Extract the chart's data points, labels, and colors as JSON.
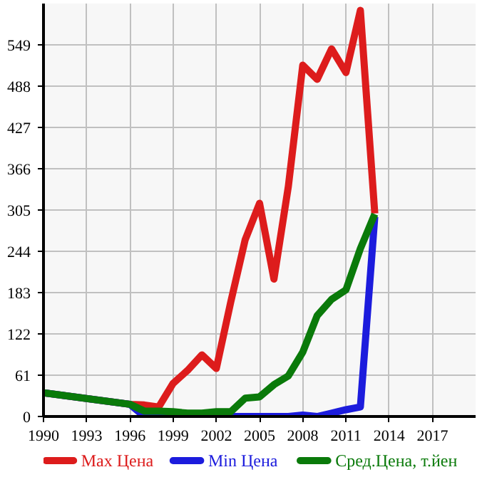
{
  "chart_data": {
    "type": "line",
    "xlim": [
      1990,
      2020
    ],
    "xticks": [
      1990,
      1993,
      1996,
      1999,
      2002,
      2005,
      2008,
      2011,
      2014,
      2017
    ],
    "ylim": [
      0,
      610
    ],
    "yticks": [
      0,
      61,
      122,
      183,
      244,
      305,
      366,
      427,
      488,
      549
    ],
    "grid": true,
    "legend": "bottom",
    "line_style": "solid",
    "marker": "none",
    "series": [
      {
        "name": "Max Цена",
        "color": "#dd1c1c",
        "x": [
          1990,
          1996,
          1997,
          1998,
          1999,
          2000,
          2001,
          2002,
          2003,
          2004,
          2005,
          2006,
          2007,
          2008,
          2009,
          2010,
          2011,
          2012,
          2013
        ],
        "values": [
          35,
          18,
          17,
          14,
          49,
          68,
          91,
          71,
          169,
          261,
          315,
          203,
          340,
          519,
          498,
          543,
          508,
          600,
          300
        ]
      },
      {
        "name": "Min Цена",
        "color": "#1c1cdd",
        "x": [
          1990,
          1996,
          1997,
          1998,
          1999,
          2000,
          2001,
          2002,
          2003,
          2004,
          2005,
          2006,
          2007,
          2008,
          2009,
          2010,
          2011,
          2012,
          2013
        ],
        "values": [
          35,
          18,
          0,
          0,
          0,
          0,
          0,
          0,
          0,
          0,
          0,
          0,
          0,
          2,
          0,
          5,
          10,
          14,
          295
        ]
      },
      {
        "name": "Сред.Цена, т.йен",
        "color": "#0a7a0a",
        "x": [
          1990,
          1996,
          1997,
          1998,
          1999,
          2000,
          2001,
          2002,
          2003,
          2004,
          2005,
          2006,
          2007,
          2008,
          2009,
          2010,
          2011,
          2012,
          2013
        ],
        "values": [
          35,
          18,
          8,
          8,
          7,
          5,
          5,
          7,
          7,
          27,
          29,
          47,
          60,
          95,
          149,
          173,
          187,
          248,
          299
        ]
      }
    ]
  }
}
